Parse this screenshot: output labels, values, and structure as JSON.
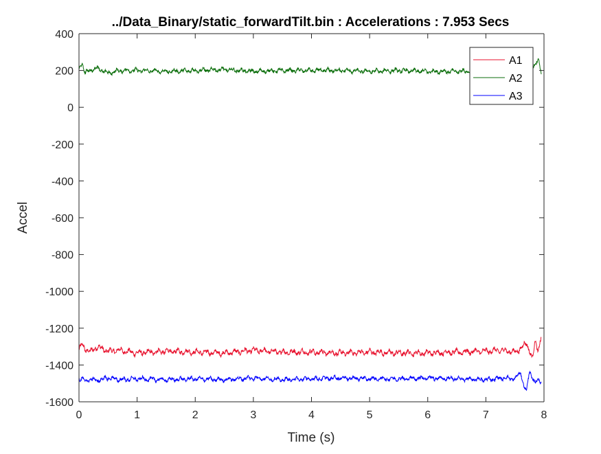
{
  "chart_data": {
    "type": "line",
    "title": "../Data_Binary/static_forwardTilt.bin : Accelerations : 7.953 Secs",
    "xlabel": "Time (s)",
    "ylabel": "Accel",
    "xlim": [
      0,
      8
    ],
    "ylim": [
      -1600,
      400
    ],
    "xticks": [
      0,
      1,
      2,
      3,
      4,
      5,
      6,
      7,
      8
    ],
    "yticks": [
      400,
      200,
      0,
      -200,
      -400,
      -600,
      -800,
      -1000,
      -1200,
      -1400,
      -1600
    ],
    "grid": false,
    "legend_position": "top-right",
    "duration_s": 7.953,
    "series": [
      {
        "name": "A1",
        "color": "#e8112d",
        "x": [
          0,
          0.05,
          0.1,
          0.2,
          0.3,
          0.5,
          0.7,
          1,
          1.5,
          2,
          2.5,
          3,
          3.5,
          4,
          4.5,
          5,
          5.5,
          6,
          6.5,
          7,
          7.3,
          7.5,
          7.6,
          7.7,
          7.75,
          7.8,
          7.85,
          7.9,
          7.953
        ],
        "values": [
          -1320,
          -1290,
          -1310,
          -1330,
          -1300,
          -1325,
          -1320,
          -1335,
          -1325,
          -1330,
          -1335,
          -1320,
          -1330,
          -1330,
          -1335,
          -1330,
          -1335,
          -1335,
          -1330,
          -1325,
          -1320,
          -1330,
          -1310,
          -1280,
          -1320,
          -1370,
          -1270,
          -1320,
          -1250
        ]
      },
      {
        "name": "A2",
        "color": "#0b6e0b",
        "x": [
          0,
          0.05,
          0.1,
          0.2,
          0.3,
          0.5,
          0.7,
          1,
          1.5,
          2,
          2.5,
          3,
          3.5,
          4,
          4.5,
          5,
          5.5,
          6,
          6.5,
          7,
          7.3,
          7.5,
          7.6,
          7.7,
          7.75,
          7.8,
          7.85,
          7.9,
          7.953
        ],
        "values": [
          200,
          245,
          190,
          200,
          215,
          185,
          200,
          200,
          195,
          200,
          205,
          195,
          200,
          200,
          200,
          195,
          200,
          195,
          195,
          200,
          195,
          200,
          210,
          150,
          200,
          220,
          240,
          260,
          185
        ]
      },
      {
        "name": "A3",
        "color": "#0000ff",
        "x": [
          0,
          0.05,
          0.1,
          0.2,
          0.3,
          0.5,
          0.7,
          1,
          1.5,
          2,
          2.5,
          3,
          3.5,
          4,
          4.5,
          5,
          5.5,
          6,
          6.5,
          7,
          7.3,
          7.5,
          7.6,
          7.65,
          7.7,
          7.75,
          7.8,
          7.85,
          7.9,
          7.953
        ],
        "values": [
          -1480,
          -1470,
          -1490,
          -1475,
          -1485,
          -1470,
          -1480,
          -1475,
          -1480,
          -1475,
          -1480,
          -1470,
          -1480,
          -1475,
          -1470,
          -1475,
          -1475,
          -1470,
          -1475,
          -1480,
          -1470,
          -1475,
          -1440,
          -1510,
          -1545,
          -1430,
          -1470,
          -1500,
          -1480,
          -1490
        ]
      }
    ]
  }
}
